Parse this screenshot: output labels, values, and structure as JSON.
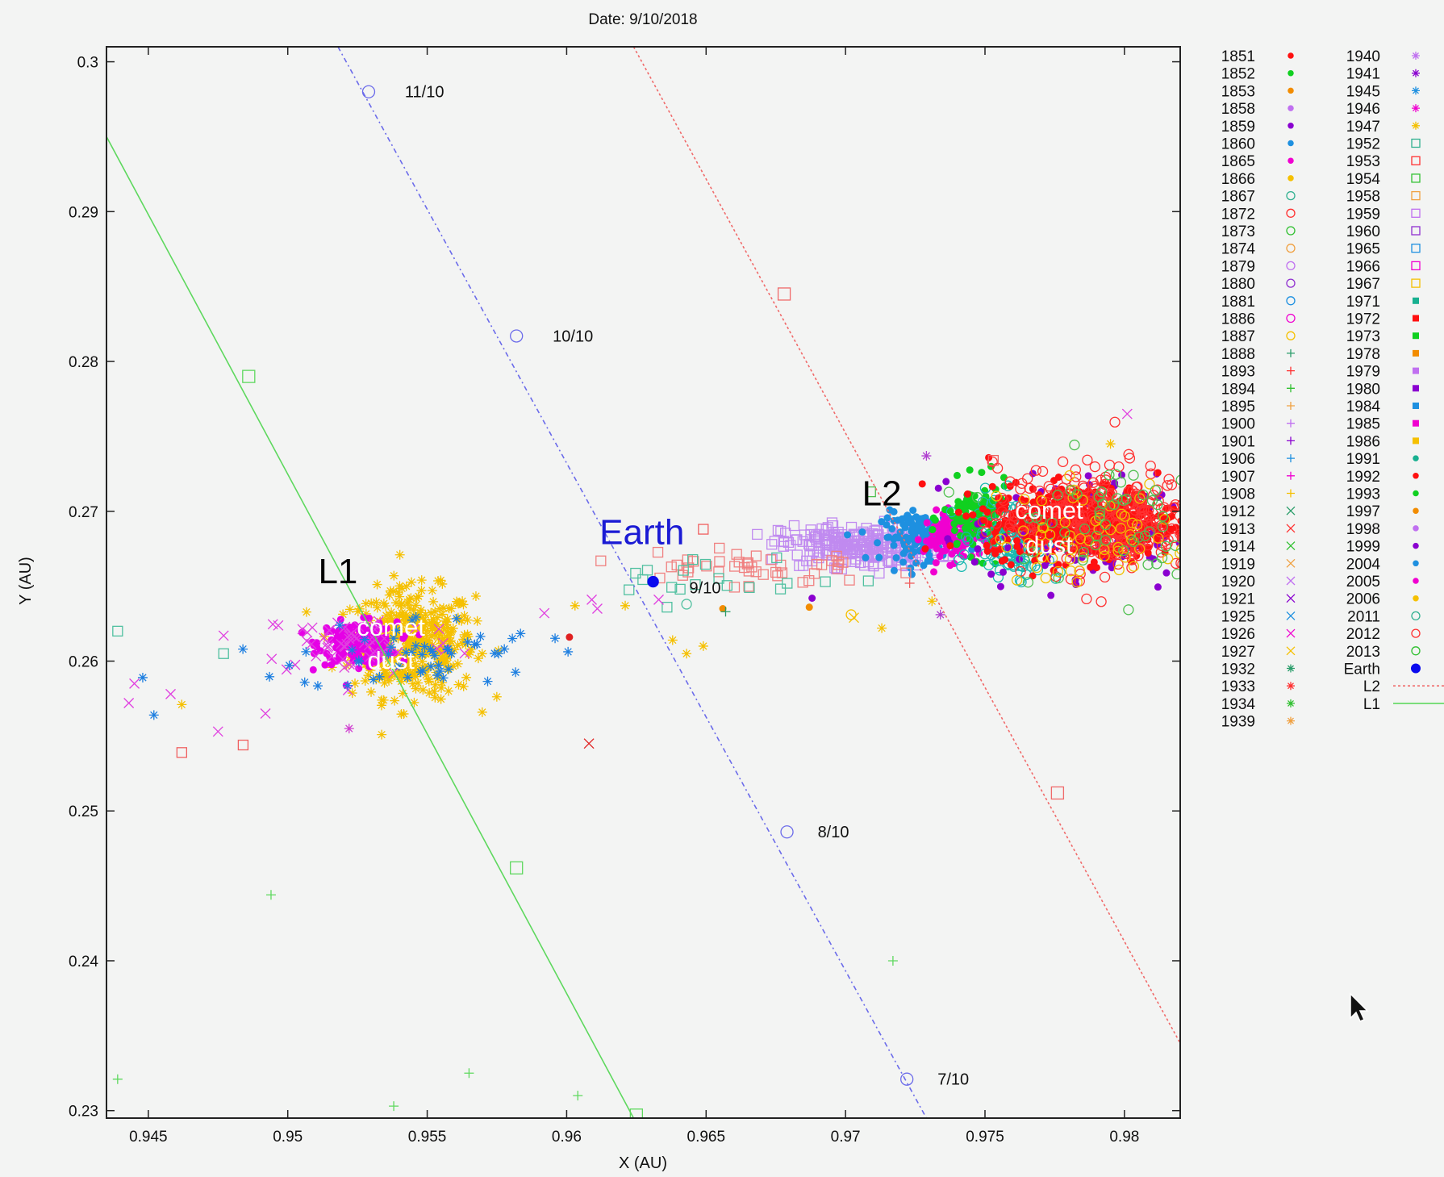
{
  "chart_data": {
    "type": "scatter",
    "title": "Date: 9/10/2018",
    "xlabel": "X (AU)",
    "ylabel": "Y (AU)",
    "xlim": [
      0.9435,
      0.982
    ],
    "ylim": [
      0.2295,
      0.301
    ],
    "x_ticks": [
      "0.945",
      "0.95",
      "0.955",
      "0.96",
      "0.965",
      "0.97",
      "0.975",
      "0.98"
    ],
    "x_tick_values": [
      0.945,
      0.95,
      0.955,
      0.96,
      0.965,
      0.97,
      0.975,
      0.98
    ],
    "y_ticks": [
      "0.23",
      "0.24",
      "0.25",
      "0.26",
      "0.27",
      "0.28",
      "0.29",
      "0.3"
    ],
    "y_tick_values": [
      0.23,
      0.24,
      0.25,
      0.26,
      0.27,
      0.28,
      0.29,
      0.3
    ],
    "grid": false,
    "legend_placement": "outside-right",
    "annotations": [
      {
        "text": "Earth",
        "x": 0.9627,
        "y": 0.2678,
        "color": "#1a1ad4"
      },
      {
        "text": "L1",
        "x": 0.9518,
        "y": 0.2652,
        "color": "#000000"
      },
      {
        "text": "L2",
        "x": 0.9713,
        "y": 0.2704,
        "color": "#000000"
      },
      {
        "text": "comet",
        "x": 0.9537,
        "y": 0.2617,
        "color": "#ffffff"
      },
      {
        "text": "dust",
        "x": 0.9537,
        "y": 0.2595,
        "color": "#ffffff"
      },
      {
        "text": "comet",
        "x": 0.9773,
        "y": 0.2695,
        "color": "#ffffff"
      },
      {
        "text": "dust",
        "x": 0.9773,
        "y": 0.2672,
        "color": "#ffffff"
      }
    ],
    "date_labels": [
      {
        "text": "11/10",
        "x": 0.9542,
        "y": 0.298
      },
      {
        "text": "10/10",
        "x": 0.9595,
        "y": 0.2817
      },
      {
        "text": "9/10",
        "x": 0.9644,
        "y": 0.2649
      },
      {
        "text": "8/10",
        "x": 0.969,
        "y": 0.2486
      },
      {
        "text": "7/10",
        "x": 0.9733,
        "y": 0.2321
      }
    ],
    "earth_path": {
      "name": "Earth",
      "color": "#6b6bea",
      "line": [
        [
          0.9518,
          0.301
        ],
        [
          0.9729,
          0.2295
        ]
      ],
      "markers": [
        [
          0.9529,
          0.298
        ],
        [
          0.9582,
          0.2817
        ],
        [
          0.9679,
          0.2486
        ],
        [
          0.9722,
          0.2321
        ]
      ],
      "earth_point": [
        0.9631,
        0.2653
      ]
    },
    "l2_path": {
      "name": "L2",
      "color": "#f06a6a",
      "line": [
        [
          0.9624,
          0.301
        ],
        [
          0.982,
          0.2345
        ]
      ],
      "markers": [
        [
          0.9678,
          0.2845
        ],
        [
          0.9776,
          0.2512
        ]
      ]
    },
    "l1_path": {
      "name": "L1",
      "color": "#5ed85e",
      "line": [
        [
          0.9435,
          0.295
        ],
        [
          0.9624,
          0.2295
        ]
      ],
      "markers": [
        [
          0.9486,
          0.279
        ],
        [
          0.9582,
          0.2462
        ],
        [
          0.9625,
          0.2297
        ]
      ]
    },
    "clusters": [
      {
        "name": "L1 yellow stars",
        "color": "#f5c000",
        "marker": "asterisk",
        "cx": 0.9545,
        "cy": 0.2612,
        "sx": 0.0011,
        "sy": 0.0018,
        "count": 420
      },
      {
        "name": "L1 magenta",
        "color": "#e600e6",
        "marker": "dot",
        "cx": 0.9525,
        "cy": 0.2612,
        "sx": 0.0007,
        "sy": 0.0007,
        "count": 180
      },
      {
        "name": "L1 magenta crosses",
        "color": "#e040e0",
        "marker": "cross",
        "cx": 0.9525,
        "cy": 0.2612,
        "sx": 0.0018,
        "sy": 0.0011,
        "count": 60
      },
      {
        "name": "L1 blue stars",
        "color": "#1e7fe0",
        "marker": "asterisk",
        "cx": 0.9548,
        "cy": 0.2605,
        "sx": 0.0022,
        "sy": 0.0013,
        "count": 55
      },
      {
        "name": "L2 purple squares",
        "color": "#c08af0",
        "marker": "square",
        "cx": 0.9705,
        "cy": 0.2677,
        "sx": 0.0014,
        "sy": 0.0007,
        "count": 260
      },
      {
        "name": "L2 blue",
        "color": "#1e90e0",
        "marker": "dot",
        "cx": 0.9727,
        "cy": 0.2683,
        "sx": 0.0007,
        "sy": 0.0008,
        "count": 140
      },
      {
        "name": "L2 magenta",
        "color": "#f000d0",
        "marker": "dot",
        "cx": 0.9738,
        "cy": 0.2683,
        "sx": 0.0005,
        "sy": 0.0008,
        "count": 110
      },
      {
        "name": "L2 green",
        "color": "#10d020",
        "marker": "dot",
        "cx": 0.9747,
        "cy": 0.2695,
        "sx": 0.0006,
        "sy": 0.0012,
        "count": 120
      },
      {
        "name": "L2 teal",
        "color": "#18b8b0",
        "marker": "circle",
        "cx": 0.9762,
        "cy": 0.2683,
        "sx": 0.0008,
        "sy": 0.0013,
        "count": 160
      },
      {
        "name": "L2 purple dots",
        "color": "#8a00d0",
        "marker": "dot",
        "cx": 0.9785,
        "cy": 0.2685,
        "sx": 0.002,
        "sy": 0.0019,
        "count": 130
      },
      {
        "name": "L2 red dots",
        "color": "#ff1010",
        "marker": "dot",
        "cx": 0.9785,
        "cy": 0.2693,
        "sx": 0.0017,
        "sy": 0.0012,
        "count": 520
      },
      {
        "name": "L2 red circles",
        "color": "#ff3030",
        "marker": "circle",
        "cx": 0.979,
        "cy": 0.2695,
        "sx": 0.0018,
        "sy": 0.0018,
        "count": 320
      },
      {
        "name": "L2 yellow circles",
        "color": "#f0c000",
        "marker": "circle",
        "cx": 0.979,
        "cy": 0.2685,
        "sx": 0.0018,
        "sy": 0.0018,
        "count": 60
      },
      {
        "name": "L2 green circles",
        "color": "#50c050",
        "marker": "circle",
        "cx": 0.979,
        "cy": 0.2695,
        "sx": 0.0018,
        "sy": 0.002,
        "count": 60
      },
      {
        "name": "bridge scatter",
        "color": "#f08080",
        "marker": "square",
        "cx": 0.9665,
        "cy": 0.2663,
        "sx": 0.0022,
        "sy": 0.0007,
        "count": 45
      },
      {
        "name": "bridge teal",
        "color": "#50c0a0",
        "marker": "square",
        "cx": 0.966,
        "cy": 0.2655,
        "sx": 0.002,
        "sy": 0.0008,
        "count": 18
      }
    ],
    "stray_points": [
      {
        "x": 0.9439,
        "y": 0.262,
        "color": "#50c0a0",
        "marker": "square"
      },
      {
        "x": 0.9462,
        "y": 0.2539,
        "color": "#f06060",
        "marker": "square"
      },
      {
        "x": 0.9484,
        "y": 0.2544,
        "color": "#f06060",
        "marker": "square"
      },
      {
        "x": 0.9477,
        "y": 0.2605,
        "color": "#50c0a0",
        "marker": "square"
      },
      {
        "x": 0.9443,
        "y": 0.2572,
        "color": "#e040e0",
        "marker": "cross"
      },
      {
        "x": 0.9445,
        "y": 0.2585,
        "color": "#e040e0",
        "marker": "cross"
      },
      {
        "x": 0.9458,
        "y": 0.2578,
        "color": "#e040e0",
        "marker": "cross"
      },
      {
        "x": 0.9475,
        "y": 0.2553,
        "color": "#e040e0",
        "marker": "cross"
      },
      {
        "x": 0.9477,
        "y": 0.2617,
        "color": "#e040e0",
        "marker": "cross"
      },
      {
        "x": 0.9492,
        "y": 0.2565,
        "color": "#e040e0",
        "marker": "cross"
      },
      {
        "x": 0.9452,
        "y": 0.2564,
        "color": "#1e7fe0",
        "marker": "asterisk"
      },
      {
        "x": 0.9448,
        "y": 0.2589,
        "color": "#1e7fe0",
        "marker": "asterisk"
      },
      {
        "x": 0.9462,
        "y": 0.2571,
        "color": "#f5c000",
        "marker": "asterisk"
      },
      {
        "x": 0.9522,
        "y": 0.2555,
        "color": "#d040d0",
        "marker": "asterisk"
      },
      {
        "x": 0.9608,
        "y": 0.2545,
        "color": "#e02020",
        "marker": "cross"
      },
      {
        "x": 0.9601,
        "y": 0.2616,
        "color": "#e02020",
        "marker": "dot"
      },
      {
        "x": 0.9494,
        "y": 0.2444,
        "color": "#5ed85e",
        "marker": "plus"
      },
      {
        "x": 0.9439,
        "y": 0.2321,
        "color": "#5ed85e",
        "marker": "plus"
      },
      {
        "x": 0.9538,
        "y": 0.2303,
        "color": "#5ed85e",
        "marker": "plus"
      },
      {
        "x": 0.9565,
        "y": 0.2325,
        "color": "#5ed85e",
        "marker": "plus"
      },
      {
        "x": 0.9604,
        "y": 0.231,
        "color": "#5ed85e",
        "marker": "plus"
      },
      {
        "x": 0.9717,
        "y": 0.24,
        "color": "#5ed85e",
        "marker": "plus"
      },
      {
        "x": 0.9656,
        "y": 0.2635,
        "color": "#f28c00",
        "marker": "dot"
      },
      {
        "x": 0.9687,
        "y": 0.2636,
        "color": "#f28c00",
        "marker": "dot"
      },
      {
        "x": 0.9657,
        "y": 0.2633,
        "color": "#2a9d6a",
        "marker": "plus"
      },
      {
        "x": 0.9636,
        "y": 0.2636,
        "color": "#50c0a0",
        "marker": "square"
      },
      {
        "x": 0.9643,
        "y": 0.2638,
        "color": "#50c0a0",
        "marker": "circle"
      },
      {
        "x": 0.9688,
        "y": 0.2642,
        "color": "#8a00d0",
        "marker": "dot"
      },
      {
        "x": 0.9702,
        "y": 0.2631,
        "color": "#f5c000",
        "marker": "circle"
      },
      {
        "x": 0.9713,
        "y": 0.2622,
        "color": "#f5c000",
        "marker": "asterisk"
      },
      {
        "x": 0.9703,
        "y": 0.2629,
        "color": "#f5c000",
        "marker": "cross"
      },
      {
        "x": 0.9649,
        "y": 0.261,
        "color": "#f5c000",
        "marker": "asterisk"
      },
      {
        "x": 0.9643,
        "y": 0.2605,
        "color": "#f5c000",
        "marker": "asterisk"
      },
      {
        "x": 0.9638,
        "y": 0.2614,
        "color": "#f5c000",
        "marker": "asterisk"
      },
      {
        "x": 0.9734,
        "y": 0.2631,
        "color": "#b040d0",
        "marker": "asterisk"
      },
      {
        "x": 0.9731,
        "y": 0.264,
        "color": "#f5c000",
        "marker": "asterisk"
      },
      {
        "x": 0.9723,
        "y": 0.2652,
        "color": "#f06060",
        "marker": "plus"
      },
      {
        "x": 0.9633,
        "y": 0.2641,
        "color": "#e040e0",
        "marker": "cross"
      },
      {
        "x": 0.9621,
        "y": 0.2637,
        "color": "#f5c000",
        "marker": "asterisk"
      },
      {
        "x": 0.9603,
        "y": 0.2637,
        "color": "#f5c000",
        "marker": "asterisk"
      },
      {
        "x": 0.9592,
        "y": 0.2632,
        "color": "#e040e0",
        "marker": "cross"
      },
      {
        "x": 0.9609,
        "y": 0.2641,
        "color": "#e040e0",
        "marker": "cross"
      },
      {
        "x": 0.9611,
        "y": 0.2635,
        "color": "#e040e0",
        "marker": "cross"
      },
      {
        "x": 0.9649,
        "y": 0.2688,
        "color": "#f06060",
        "marker": "square"
      },
      {
        "x": 0.9729,
        "y": 0.2737,
        "color": "#b040d0",
        "marker": "asterisk"
      },
      {
        "x": 0.9801,
        "y": 0.2765,
        "color": "#e040e0",
        "marker": "cross"
      },
      {
        "x": 0.9709,
        "y": 0.2713,
        "color": "#50c050",
        "marker": "square"
      },
      {
        "x": 0.9753,
        "y": 0.2734,
        "color": "#f06060",
        "marker": "square"
      },
      {
        "x": 0.9795,
        "y": 0.2745,
        "color": "#f5c000",
        "marker": "asterisk"
      }
    ],
    "legend_col1": [
      {
        "label": "1851",
        "color": "#ff1010",
        "marker": "dot"
      },
      {
        "label": "1852",
        "color": "#10d020",
        "marker": "dot"
      },
      {
        "label": "1853",
        "color": "#f28c00",
        "marker": "dot"
      },
      {
        "label": "1858",
        "color": "#c070f0",
        "marker": "dot"
      },
      {
        "label": "1859",
        "color": "#8a00d0",
        "marker": "dot"
      },
      {
        "label": "1860",
        "color": "#1e90e0",
        "marker": "dot"
      },
      {
        "label": "1865",
        "color": "#f000d0",
        "marker": "dot"
      },
      {
        "label": "1866",
        "color": "#f5c000",
        "marker": "dot"
      },
      {
        "label": "1867",
        "color": "#30b090",
        "marker": "circle"
      },
      {
        "label": "1872",
        "color": "#ff3030",
        "marker": "circle"
      },
      {
        "label": "1873",
        "color": "#30c030",
        "marker": "circle"
      },
      {
        "label": "1874",
        "color": "#f0a040",
        "marker": "circle"
      },
      {
        "label": "1879",
        "color": "#c070f0",
        "marker": "circle"
      },
      {
        "label": "1880",
        "color": "#9030d0",
        "marker": "circle"
      },
      {
        "label": "1881",
        "color": "#1e90e0",
        "marker": "circle"
      },
      {
        "label": "1886",
        "color": "#f000d0",
        "marker": "circle"
      },
      {
        "label": "1887",
        "color": "#f5c000",
        "marker": "circle"
      },
      {
        "label": "1888",
        "color": "#2a9d6a",
        "marker": "plus"
      },
      {
        "label": "1893",
        "color": "#ff3030",
        "marker": "plus"
      },
      {
        "label": "1894",
        "color": "#30c030",
        "marker": "plus"
      },
      {
        "label": "1895",
        "color": "#f0a040",
        "marker": "plus"
      },
      {
        "label": "1900",
        "color": "#c070f0",
        "marker": "plus"
      },
      {
        "label": "1901",
        "color": "#8a00d0",
        "marker": "plus"
      },
      {
        "label": "1906",
        "color": "#1e90e0",
        "marker": "plus"
      },
      {
        "label": "1907",
        "color": "#f000d0",
        "marker": "plus"
      },
      {
        "label": "1908",
        "color": "#f5c000",
        "marker": "plus"
      },
      {
        "label": "1912",
        "color": "#2a9d6a",
        "marker": "cross"
      },
      {
        "label": "1913",
        "color": "#ff3030",
        "marker": "cross"
      },
      {
        "label": "1914",
        "color": "#30c030",
        "marker": "cross"
      },
      {
        "label": "1919",
        "color": "#f0a040",
        "marker": "cross"
      },
      {
        "label": "1920",
        "color": "#c070f0",
        "marker": "cross"
      },
      {
        "label": "1921",
        "color": "#8a00d0",
        "marker": "cross"
      },
      {
        "label": "1925",
        "color": "#1e90e0",
        "marker": "cross"
      },
      {
        "label": "1926",
        "color": "#f000d0",
        "marker": "cross"
      },
      {
        "label": "1927",
        "color": "#f5c000",
        "marker": "cross"
      },
      {
        "label": "1932",
        "color": "#2a9d6a",
        "marker": "asterisk"
      },
      {
        "label": "1933",
        "color": "#ff3030",
        "marker": "asterisk"
      },
      {
        "label": "1934",
        "color": "#30c030",
        "marker": "asterisk"
      },
      {
        "label": "1939",
        "color": "#f0a040",
        "marker": "asterisk"
      }
    ],
    "legend_col2": [
      {
        "label": "1940",
        "color": "#c070f0",
        "marker": "asterisk"
      },
      {
        "label": "1941",
        "color": "#8a00d0",
        "marker": "asterisk"
      },
      {
        "label": "1945",
        "color": "#1e90e0",
        "marker": "asterisk"
      },
      {
        "label": "1946",
        "color": "#f000d0",
        "marker": "asterisk"
      },
      {
        "label": "1947",
        "color": "#f5c000",
        "marker": "asterisk"
      },
      {
        "label": "1952",
        "color": "#30b090",
        "marker": "square"
      },
      {
        "label": "1953",
        "color": "#ff3030",
        "marker": "square"
      },
      {
        "label": "1954",
        "color": "#30c030",
        "marker": "square"
      },
      {
        "label": "1958",
        "color": "#f0a040",
        "marker": "square"
      },
      {
        "label": "1959",
        "color": "#c070f0",
        "marker": "square"
      },
      {
        "label": "1960",
        "color": "#9030d0",
        "marker": "square"
      },
      {
        "label": "1965",
        "color": "#1e90e0",
        "marker": "square"
      },
      {
        "label": "1966",
        "color": "#f000d0",
        "marker": "square"
      },
      {
        "label": "1967",
        "color": "#f5c000",
        "marker": "square"
      },
      {
        "label": "1971",
        "color": "#18b090",
        "marker": "filled-square"
      },
      {
        "label": "1972",
        "color": "#ff1010",
        "marker": "filled-square"
      },
      {
        "label": "1973",
        "color": "#10d020",
        "marker": "filled-square"
      },
      {
        "label": "1978",
        "color": "#f28c00",
        "marker": "filled-square"
      },
      {
        "label": "1979",
        "color": "#c070f0",
        "marker": "filled-square"
      },
      {
        "label": "1980",
        "color": "#8a00d0",
        "marker": "filled-square"
      },
      {
        "label": "1984",
        "color": "#1e90e0",
        "marker": "filled-square"
      },
      {
        "label": "1985",
        "color": "#f000d0",
        "marker": "filled-square"
      },
      {
        "label": "1986",
        "color": "#f5c000",
        "marker": "filled-square"
      },
      {
        "label": "1991",
        "color": "#18b090",
        "marker": "dot"
      },
      {
        "label": "1992",
        "color": "#ff1010",
        "marker": "dot"
      },
      {
        "label": "1993",
        "color": "#10d020",
        "marker": "dot"
      },
      {
        "label": "1997",
        "color": "#f28c00",
        "marker": "dot"
      },
      {
        "label": "1998",
        "color": "#c070f0",
        "marker": "dot"
      },
      {
        "label": "1999",
        "color": "#8a00d0",
        "marker": "dot"
      },
      {
        "label": "2004",
        "color": "#1e90e0",
        "marker": "dot"
      },
      {
        "label": "2005",
        "color": "#f000d0",
        "marker": "dot"
      },
      {
        "label": "2006",
        "color": "#f5c000",
        "marker": "dot"
      },
      {
        "label": "2011",
        "color": "#30b090",
        "marker": "circle"
      },
      {
        "label": "2012",
        "color": "#ff3030",
        "marker": "circle"
      },
      {
        "label": "2013",
        "color": "#30c030",
        "marker": "circle"
      },
      {
        "label": "Earth",
        "color": "#0a0aee",
        "marker": "big-dot"
      },
      {
        "label": "L2",
        "color": "#f06a6a",
        "marker": "dashed-line"
      },
      {
        "label": "L1",
        "color": "#5ed85e",
        "marker": "line"
      }
    ]
  }
}
